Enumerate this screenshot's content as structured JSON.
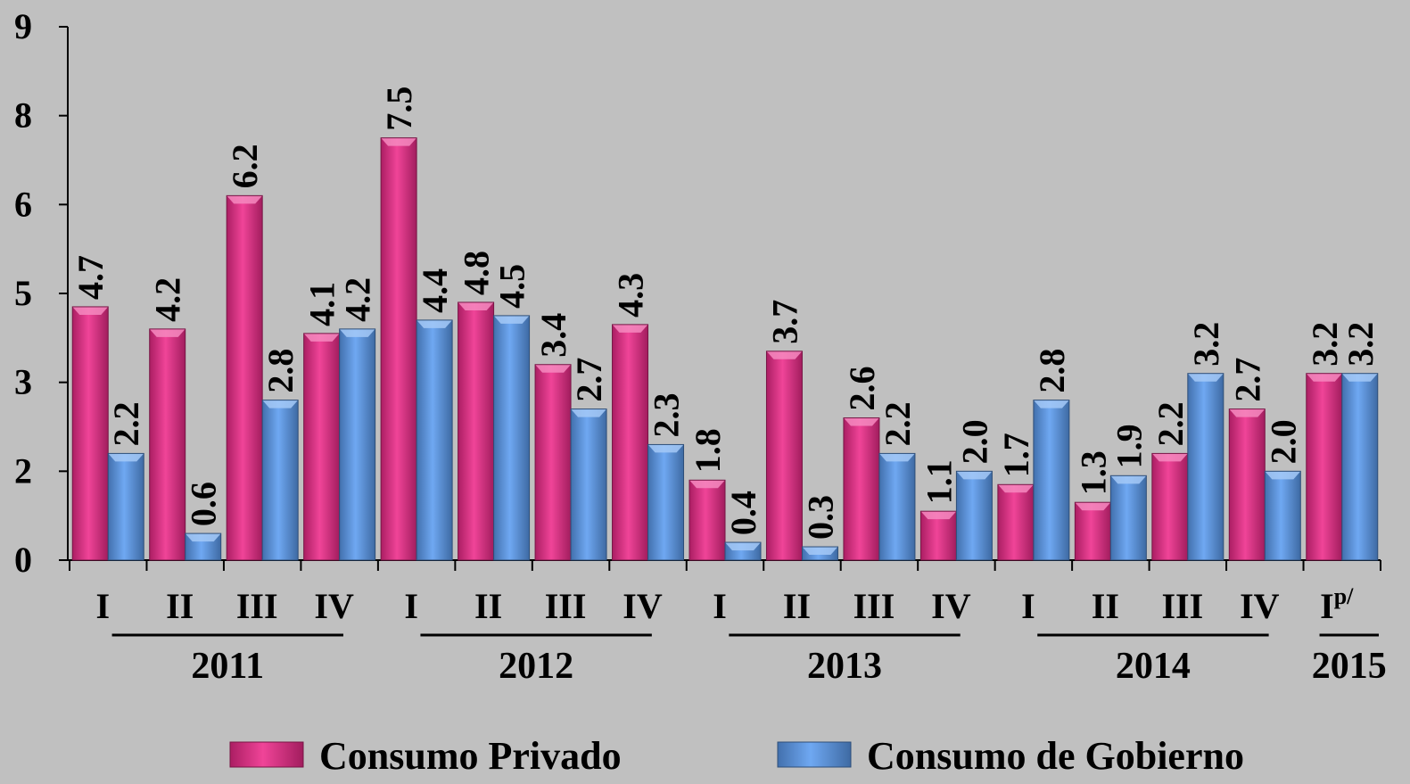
{
  "chart_data": {
    "type": "bar",
    "title": "",
    "xlabel": "",
    "ylabel": "",
    "y_ticks": [
      "0",
      "2",
      "3",
      "5",
      "6",
      "8",
      "9"
    ],
    "ylim": [
      0,
      9
    ],
    "grid": false,
    "legend_position": "bottom",
    "categories": [
      {
        "quarter": "I",
        "year": "2011"
      },
      {
        "quarter": "II",
        "year": "2011"
      },
      {
        "quarter": "III",
        "year": "2011"
      },
      {
        "quarter": "IV",
        "year": "2011"
      },
      {
        "quarter": "I",
        "year": "2012"
      },
      {
        "quarter": "II",
        "year": "2012"
      },
      {
        "quarter": "III",
        "year": "2012"
      },
      {
        "quarter": "IV",
        "year": "2012"
      },
      {
        "quarter": "I",
        "year": "2013"
      },
      {
        "quarter": "II",
        "year": "2013"
      },
      {
        "quarter": "III",
        "year": "2013"
      },
      {
        "quarter": "IV",
        "year": "2013"
      },
      {
        "quarter": "I",
        "year": "2014"
      },
      {
        "quarter": "II",
        "year": "2014"
      },
      {
        "quarter": "III",
        "year": "2014"
      },
      {
        "quarter": "IV",
        "year": "2014"
      },
      {
        "quarter": "I",
        "superscript": "p/",
        "year": "2015"
      }
    ],
    "years": [
      "2011",
      "2012",
      "2013",
      "2014",
      "2015"
    ],
    "series": [
      {
        "name": "Consumo Privado",
        "color": "#ee2a8a",
        "values": [
          4.7,
          4.2,
          6.2,
          4.1,
          7.5,
          4.8,
          3.4,
          4.3,
          1.8,
          3.7,
          2.6,
          1.1,
          1.7,
          1.3,
          2.2,
          2.7,
          3.2
        ],
        "labels": [
          "4.7",
          "4.2",
          "6.2",
          "4.1",
          "7.5",
          "4.8",
          "3.4",
          "4.3",
          "1.8",
          "3.7",
          "2.6",
          "1.1",
          "1.7",
          "1.3",
          "2.2",
          "2.7",
          "3.2"
        ]
      },
      {
        "name": "Consumo de Gobierno",
        "color": "#5b9cf0",
        "values": [
          2.2,
          0.6,
          2.8,
          4.2,
          4.4,
          4.5,
          2.7,
          2.3,
          0.4,
          0.3,
          2.2,
          2.0,
          2.8,
          1.9,
          3.2,
          2.0,
          3.2
        ],
        "labels": [
          "2.2",
          "0.6",
          "2.8",
          "4.2",
          "4.4",
          "4.5",
          "2.7",
          "2.3",
          "0.4",
          "0.3",
          "2.2",
          "2.0",
          "2.8",
          "1.9",
          "3.2",
          "2.0",
          "3.2"
        ]
      }
    ]
  }
}
